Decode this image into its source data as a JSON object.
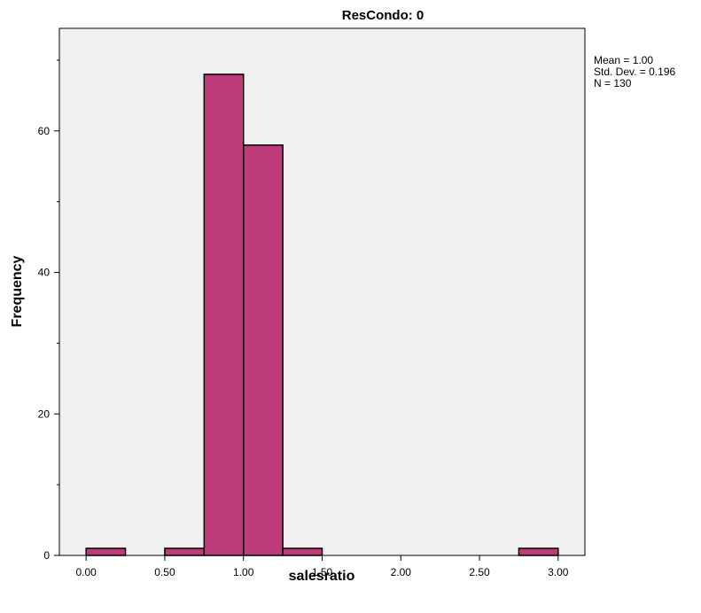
{
  "chart_data": {
    "type": "bar",
    "title": "ResCondo: 0",
    "xlabel": "salesratio",
    "ylabel": "Frequency",
    "xlim": [
      -0.17,
      3.17
    ],
    "ylim": [
      0,
      74.5
    ],
    "x_ticks": [
      0.0,
      0.5,
      1.0,
      1.5,
      2.0,
      2.5,
      3.0
    ],
    "x_tick_labels": [
      "0.00",
      "0.50",
      "1.00",
      "1.50",
      "2.00",
      "2.50",
      "3.00"
    ],
    "y_ticks": [
      0,
      20,
      40,
      60
    ],
    "y_tick_labels": [
      "0",
      "20",
      "40",
      "60"
    ],
    "y_minor_ticks": [
      10,
      30,
      50,
      70
    ],
    "bins": [
      {
        "start": 0.0,
        "end": 0.25,
        "count": 1
      },
      {
        "start": 0.5,
        "end": 0.75,
        "count": 1
      },
      {
        "start": 0.75,
        "end": 1.0,
        "count": 68
      },
      {
        "start": 1.0,
        "end": 1.25,
        "count": 58
      },
      {
        "start": 1.25,
        "end": 1.5,
        "count": 1
      },
      {
        "start": 2.75,
        "end": 3.0,
        "count": 1
      }
    ],
    "bar_color": "#bc3c7a",
    "plot_background": "#f0f0f0",
    "grid": false,
    "stats": [
      "Mean = 1.00",
      "Std. Dev. = 0.196",
      "N = 130"
    ]
  }
}
